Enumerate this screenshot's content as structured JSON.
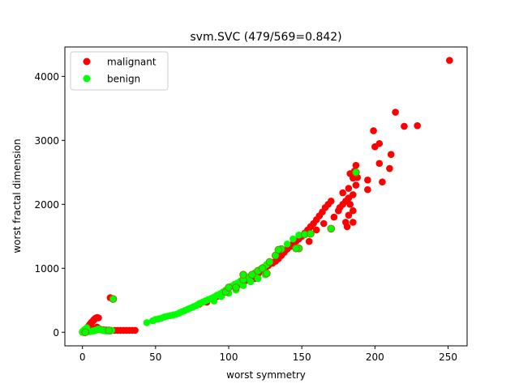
{
  "chart_data": {
    "type": "scatter",
    "title": "svm.SVC (479/569=0.842)",
    "xlabel": "worst symmetry",
    "ylabel": "worst fractal dimension",
    "xlim": [
      -12,
      263
    ],
    "ylim": [
      -212,
      4460
    ],
    "xticks": [
      0,
      50,
      100,
      150,
      200,
      250
    ],
    "yticks": [
      0,
      1000,
      2000,
      3000,
      4000
    ],
    "grid": false,
    "legend_position": "top-left",
    "colors": {
      "malignant": "#ff0000",
      "benign": "#00ff00",
      "misclassified_edge": "#808000"
    },
    "series": [
      {
        "name": "malignant",
        "color": "#ff0000",
        "points": [
          [
            0,
            0
          ],
          [
            0.5,
            5
          ],
          [
            1,
            10
          ],
          [
            1.5,
            20
          ],
          [
            2,
            30
          ],
          [
            2.5,
            45
          ],
          [
            3,
            60
          ],
          [
            3.5,
            75
          ],
          [
            4,
            90
          ],
          [
            4.5,
            105
          ],
          [
            5,
            120
          ],
          [
            5.5,
            135
          ],
          [
            6,
            150
          ],
          [
            6.5,
            160
          ],
          [
            7,
            170
          ],
          [
            7.5,
            185
          ],
          [
            8,
            200
          ],
          [
            8.5,
            210
          ],
          [
            9,
            220
          ],
          [
            9.5,
            225
          ],
          [
            10,
            230
          ],
          [
            11,
            225
          ],
          [
            6,
            40
          ],
          [
            8,
            60
          ],
          [
            10,
            80
          ],
          [
            12,
            50
          ],
          [
            14,
            40
          ],
          [
            16,
            35
          ],
          [
            18,
            30
          ],
          [
            20,
            30
          ],
          [
            22,
            30
          ],
          [
            24,
            30
          ],
          [
            26,
            30
          ],
          [
            28,
            30
          ],
          [
            30,
            30
          ],
          [
            32,
            30
          ],
          [
            34,
            30
          ],
          [
            36,
            30
          ],
          [
            19,
            540
          ],
          [
            80,
            440
          ],
          [
            85,
            470
          ],
          [
            92,
            560
          ],
          [
            98,
            630
          ],
          [
            105,
            700
          ],
          [
            108,
            750
          ],
          [
            110,
            780
          ],
          [
            112,
            810
          ],
          [
            115,
            820
          ],
          [
            118,
            840
          ],
          [
            120,
            910
          ],
          [
            122,
            950
          ],
          [
            125,
            1000
          ],
          [
            127,
            1040
          ],
          [
            130,
            1080
          ],
          [
            132,
            1110
          ],
          [
            134,
            1150
          ],
          [
            136,
            1200
          ],
          [
            138,
            1250
          ],
          [
            140,
            1300
          ],
          [
            142,
            1340
          ],
          [
            144,
            1380
          ],
          [
            146,
            1420
          ],
          [
            148,
            1460
          ],
          [
            150,
            1500
          ],
          [
            152,
            1550
          ],
          [
            154,
            1600
          ],
          [
            156,
            1650
          ],
          [
            158,
            1700
          ],
          [
            160,
            1760
          ],
          [
            162,
            1820
          ],
          [
            164,
            1880
          ],
          [
            166,
            1950
          ],
          [
            168,
            2000
          ],
          [
            170,
            2050
          ],
          [
            148,
            1310
          ],
          [
            155,
            1420
          ],
          [
            160,
            1600
          ],
          [
            165,
            1700
          ],
          [
            172,
            1800
          ],
          [
            175,
            1900
          ],
          [
            178,
            2000
          ],
          [
            180,
            2050
          ],
          [
            182,
            2100
          ],
          [
            176,
            1950
          ],
          [
            180,
            1720
          ],
          [
            182,
            1830
          ],
          [
            185,
            1900
          ],
          [
            183,
            2000
          ],
          [
            181,
            1650
          ],
          [
            185,
            1720
          ],
          [
            182,
            2250
          ],
          [
            178,
            2180
          ],
          [
            185,
            2150
          ],
          [
            187,
            2300
          ],
          [
            183,
            2480
          ],
          [
            186,
            2520
          ],
          [
            187,
            2610
          ],
          [
            185,
            2410
          ],
          [
            188,
            2420
          ],
          [
            195,
            2380
          ],
          [
            195,
            2230
          ],
          [
            199,
            3150
          ],
          [
            200,
            2900
          ],
          [
            203,
            2950
          ],
          [
            203,
            2640
          ],
          [
            205,
            2350
          ],
          [
            210,
            2560
          ],
          [
            211,
            2780
          ],
          [
            214,
            3440
          ],
          [
            220,
            3220
          ],
          [
            229,
            3230
          ],
          [
            251,
            4250
          ]
        ]
      },
      {
        "name": "benign",
        "color": "#00ff00",
        "points": [
          [
            0,
            0
          ],
          [
            0,
            10
          ],
          [
            0.5,
            20
          ],
          [
            1,
            30
          ],
          [
            1.5,
            40
          ],
          [
            2,
            50
          ],
          [
            2.5,
            60
          ],
          [
            3,
            70
          ],
          [
            1,
            -5
          ],
          [
            3,
            5
          ],
          [
            5,
            10
          ],
          [
            7,
            20
          ],
          [
            8,
            25
          ],
          [
            9,
            30
          ],
          [
            10,
            40
          ],
          [
            11,
            50
          ],
          [
            12,
            40
          ],
          [
            13,
            35
          ],
          [
            14,
            30
          ],
          [
            15,
            25
          ],
          [
            16,
            22
          ],
          [
            17,
            25
          ],
          [
            18,
            25
          ],
          [
            19,
            20
          ],
          [
            20,
            30
          ],
          [
            21,
            520
          ],
          [
            44,
            150
          ],
          [
            48,
            180
          ],
          [
            50,
            200
          ],
          [
            52,
            210
          ],
          [
            54,
            220
          ],
          [
            56,
            240
          ],
          [
            58,
            250
          ],
          [
            60,
            260
          ],
          [
            62,
            270
          ],
          [
            64,
            280
          ],
          [
            66,
            300
          ],
          [
            68,
            320
          ],
          [
            70,
            340
          ],
          [
            72,
            360
          ],
          [
            74,
            380
          ],
          [
            76,
            400
          ],
          [
            78,
            420
          ],
          [
            80,
            450
          ],
          [
            82,
            470
          ],
          [
            84,
            490
          ],
          [
            86,
            510
          ],
          [
            88,
            530
          ],
          [
            90,
            550
          ],
          [
            92,
            580
          ],
          [
            94,
            600
          ],
          [
            96,
            630
          ],
          [
            98,
            660
          ],
          [
            100,
            690
          ],
          [
            102,
            720
          ],
          [
            104,
            750
          ],
          [
            106,
            770
          ],
          [
            108,
            800
          ],
          [
            110,
            820
          ],
          [
            112,
            850
          ],
          [
            114,
            870
          ],
          [
            116,
            900
          ],
          [
            118,
            930
          ],
          [
            120,
            960
          ],
          [
            122,
            990
          ],
          [
            124,
            1020
          ],
          [
            126,
            1060
          ],
          [
            90,
            490
          ],
          [
            95,
            560
          ],
          [
            100,
            610
          ],
          [
            105,
            660
          ],
          [
            110,
            730
          ],
          [
            115,
            790
          ],
          [
            120,
            840
          ],
          [
            125,
            900
          ],
          [
            128,
            1100
          ],
          [
            132,
            1200
          ],
          [
            136,
            1300
          ],
          [
            140,
            1380
          ],
          [
            144,
            1460
          ],
          [
            148,
            1520
          ],
          [
            152,
            1530
          ],
          [
            156,
            1540
          ],
          [
            170,
            1620
          ],
          [
            187,
            2500
          ]
        ]
      }
    ],
    "misclassified": [
      [
        21,
        520
      ],
      [
        18,
        30
      ],
      [
        2,
        0
      ],
      [
        128,
        1100
      ],
      [
        132,
        1200
      ],
      [
        136,
        1300
      ],
      [
        152,
        1530
      ],
      [
        156,
        1540
      ],
      [
        170,
        1620
      ],
      [
        187,
        2500
      ],
      [
        120,
        960
      ],
      [
        110,
        820
      ],
      [
        105,
        700
      ],
      [
        98,
        630
      ],
      [
        148,
        1310
      ],
      [
        126,
        920
      ],
      [
        110,
        900
      ],
      [
        100,
        700
      ],
      [
        116,
        900
      ],
      [
        123,
        1000
      ],
      [
        134,
        1290
      ],
      [
        146,
        1310
      ]
    ]
  }
}
